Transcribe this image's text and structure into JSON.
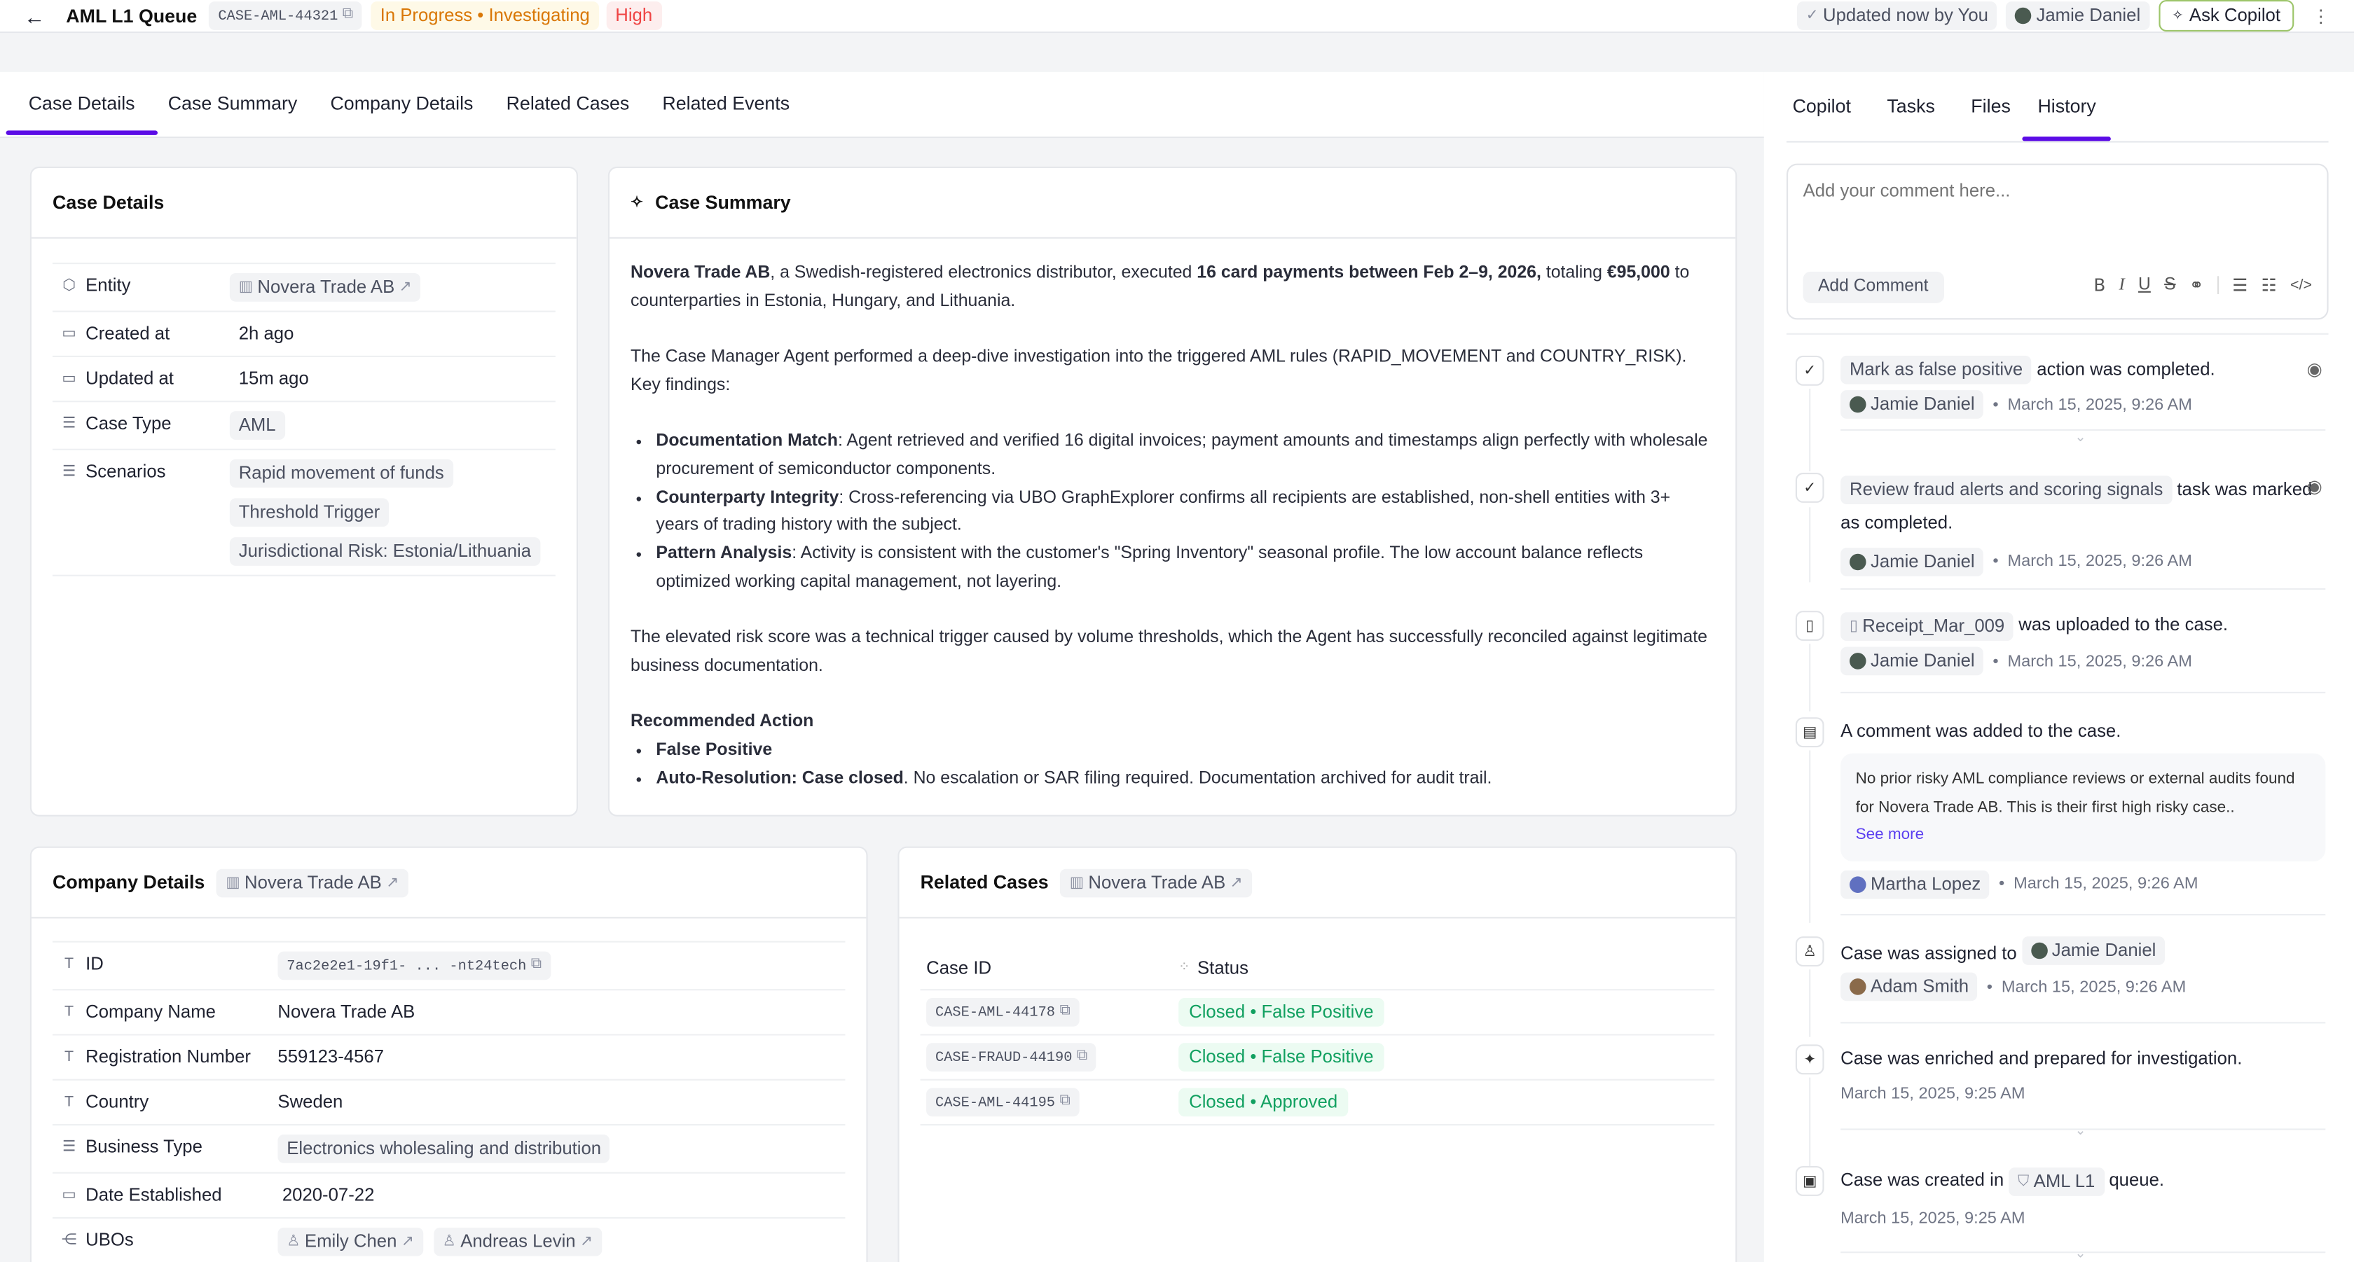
{
  "header": {
    "back_icon": "arrow-left-icon",
    "title": "AML L1 Queue",
    "case_id": "CASE-AML-44321",
    "status": "In Progress • Investigating",
    "priority": "High",
    "updated": "Updated now by You",
    "user": "Jamie Daniel",
    "ask_copilot": "Ask Copilot",
    "colors": {
      "status_bg": "#fef9e7",
      "status_fg": "#d97706",
      "priority_bg": "#fdeeee",
      "priority_fg": "#ef4444",
      "accent": "#5b0ce6"
    }
  },
  "main_tabs": [
    {
      "label": "Case Details",
      "active": true
    },
    {
      "label": "Case Summary"
    },
    {
      "label": "Company Details"
    },
    {
      "label": "Related Cases"
    },
    {
      "label": "Related Events"
    }
  ],
  "case_details": {
    "title": "Case Details",
    "rows": [
      {
        "label": "Entity",
        "value": "Novera Trade AB"
      },
      {
        "label": "Created at",
        "value": "2h ago"
      },
      {
        "label": "Updated at",
        "value": "15m ago"
      },
      {
        "label": "Case Type",
        "value": "AML"
      },
      {
        "label": "Scenarios",
        "values": [
          "Rapid movement of funds",
          "Threshold Trigger",
          "Jurisdictional Risk: Estonia/Lithuania"
        ]
      }
    ]
  },
  "case_summary": {
    "title": "Case Summary",
    "p1": {
      "b1": "Novera Trade AB",
      "t1": ", a Swedish-registered electronics distributor, executed ",
      "b2": "16 card payments between Feb 2–9, 2026,",
      "t2": " totaling ",
      "b3": "€95,000",
      "t3": " to counterparties in Estonia, Hungary, and Lithuania."
    },
    "p2": "The Case Manager Agent performed a deep-dive investigation into the triggered AML rules (RAPID_MOVEMENT and COUNTRY_RISK). Key findings:",
    "findings": [
      {
        "label": "Documentation Match",
        "text": ": Agent retrieved and verified 16 digital invoices; payment amounts and timestamps align perfectly with wholesale procurement of semiconductor components."
      },
      {
        "label": "Counterparty Integrity",
        "text": ": Cross-referencing via UBO GraphExplorer confirms all recipients are established, non-shell entities with 3+ years of trading history with the subject."
      },
      {
        "label": "Pattern Analysis",
        "text": ": Activity is consistent with the customer's \"Spring Inventory\" seasonal profile. The low account balance reflects optimized working capital management, not layering."
      }
    ],
    "p3": "The elevated risk score was a technical trigger caused by volume thresholds, which the Agent has successfully reconciled against legitimate business documentation.",
    "rec_title": "Recommended Action",
    "rec1": "False Positive",
    "rec2_b": "Auto-Resolution: Case closed",
    "rec2_t": ". No escalation or SAR filing required. Documentation archived for audit trail."
  },
  "company_details": {
    "title": "Company Details",
    "entity": "Novera Trade AB",
    "rows": [
      {
        "label": "ID",
        "value": "7ac2e2e1-19f1- ... -nt24tech"
      },
      {
        "label": "Company Name",
        "value": "Novera Trade AB"
      },
      {
        "label": "Registration Number",
        "value": "559123-4567"
      },
      {
        "label": "Country",
        "value": "Sweden"
      },
      {
        "label": "Business Type",
        "value": "Electronics wholesaling and distribution"
      },
      {
        "label": "Date Established",
        "value": "2020-07-22"
      },
      {
        "label": "UBOs",
        "values": [
          "Emily Chen",
          "Andreas Levin"
        ]
      }
    ]
  },
  "related_cases": {
    "title": "Related Cases",
    "entity": "Novera Trade AB",
    "columns": [
      "Case ID",
      "Status"
    ],
    "rows": [
      {
        "id": "CASE-AML-44178",
        "status": "Closed • False Positive"
      },
      {
        "id": "CASE-FRAUD-44190",
        "status": "Closed • False Positive"
      },
      {
        "id": "CASE-AML-44195",
        "status": "Closed • Approved"
      }
    ]
  },
  "side_tabs": [
    {
      "label": "Copilot"
    },
    {
      "label": "Tasks"
    },
    {
      "label": "Files"
    },
    {
      "label": "History",
      "active": true
    }
  ],
  "comment": {
    "placeholder": "Add your comment here...",
    "button": "Add Comment",
    "toolbar": [
      "B",
      "I",
      "U",
      "S",
      "link",
      "bullets",
      "numbers",
      "code"
    ]
  },
  "history": [
    {
      "icon": "check-icon",
      "chip": "Mark as false positive",
      "text": "action was completed.",
      "user": "Jamie Daniel",
      "time": "March 15, 2025, 9:26 AM"
    },
    {
      "icon": "check-icon",
      "chip": "Review fraud alerts and scoring signals",
      "text": "task was marked as completed.",
      "user": "Jamie Daniel",
      "time": "March 15, 2025, 9:26 AM"
    },
    {
      "icon": "file-icon",
      "chip": "Receipt_Mar_009",
      "text": "was uploaded to the case.",
      "user": "Jamie Daniel",
      "time": "March 15, 2025, 9:26 AM"
    },
    {
      "icon": "comment-icon",
      "text": "A comment was added to the case.",
      "comment": "No prior risky AML compliance reviews or external audits found for Novera Trade AB. This is their first high risky case..",
      "see_more": "See more",
      "user": "Martha Lopez",
      "time": "March 15, 2025, 9:26 AM"
    },
    {
      "icon": "user-icon",
      "text": "Case was assigned to",
      "chip": "Jamie Daniel",
      "user": "Adam Smith",
      "time": "March 15, 2025, 9:26 AM"
    },
    {
      "icon": "sparkle-icon",
      "text": "Case was enriched and prepared for investigation.",
      "time": "March 15, 2025, 9:25 AM"
    },
    {
      "icon": "briefcase-icon",
      "text": "Case was created in",
      "chip": "AML L1",
      "text2": "queue.",
      "time": "March 15, 2025, 9:25 AM"
    }
  ]
}
